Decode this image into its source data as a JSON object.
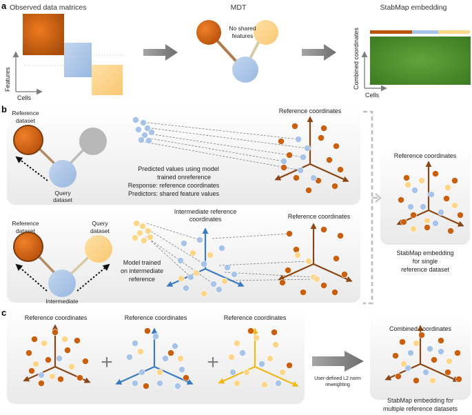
{
  "panel_labels": {
    "a": "a",
    "b": "b",
    "c": "c"
  },
  "panel_a": {
    "observed_title": "Observed data matrices",
    "features_axis": "Features",
    "cells_axis": "Cells",
    "mdt_title": "MDT",
    "no_shared_features": [
      "No shared",
      "features"
    ],
    "stabmap_title": "StabMap embedding",
    "combined_axis": [
      "Combined coordinates"
    ],
    "cells_axis_right": "Cells"
  },
  "panel_b_top": {
    "reference_dataset": [
      "Reference",
      "dataset"
    ],
    "query_dataset": [
      "Query",
      "dataset"
    ],
    "predicted_prefix": "Predicted values using model",
    "trained_on": "trained on",
    "reference_word": "reference",
    "response": "Response: reference coordinates",
    "predictors": "Predictors: shared feature values",
    "reference_coordinates": "Reference coordinates"
  },
  "panel_b_bottom": {
    "reference_dataset": [
      "Reference",
      "dataset"
    ],
    "query_dataset": [
      "Query",
      "dataset"
    ],
    "intermediate": "Intermediate",
    "intermediate_ref_coords": [
      "Intermediate reference",
      "coordinates"
    ],
    "model_text": [
      "Model trained",
      "on intermediate",
      "reference"
    ],
    "reference_coordinates": "Reference coordinates"
  },
  "panel_b_right": {
    "reference_coordinates": "Reference coordinates",
    "caption": [
      "StabMap embedding",
      "for single",
      "reference dataset"
    ]
  },
  "panel_c": {
    "ref_coords_1": "Reference coordinates",
    "ref_coords_2": "Reference coordinates",
    "ref_coords_3": "Reference coordinates",
    "plus": "+",
    "reweight": [
      "User-defined L2 norm",
      "reweighting"
    ],
    "combined_coordinates": "Combined coordinates",
    "caption": [
      "StabMap embedding for",
      "multiple reference datasets"
    ]
  },
  "colors": {
    "reference": "#b45309",
    "reference_dark": "#8b4513",
    "query": "#a7c4e8",
    "query_text": "#3a7abf",
    "yellow": "#fcd68a",
    "yellow_text": "#e8a520",
    "grey": "#b5b5b5",
    "green": "#4c8c2e",
    "axis_brown": "#8b4513",
    "axis_blue": "#3a7abf",
    "axis_yellow": "#efb817"
  }
}
